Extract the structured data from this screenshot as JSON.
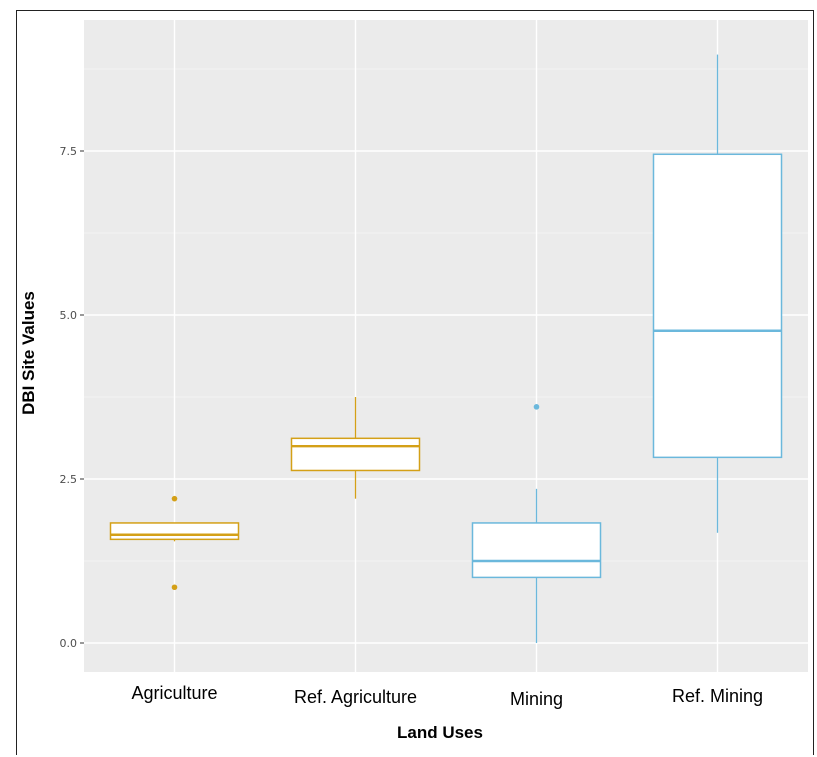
{
  "chart_data": {
    "type": "box",
    "title": "",
    "xlabel": "Land Uses",
    "ylabel": "DBI Site Values",
    "ylim": [
      -0.85,
      9.75
    ],
    "yticks": [
      0.0,
      2.5,
      5.0,
      7.5
    ],
    "ytick_labels": [
      "0.0",
      "2.5",
      "5.0",
      "7.5"
    ],
    "grid": true,
    "legend": "none",
    "categories": [
      "Agriculture",
      "Ref. Agriculture",
      "Mining",
      "Ref. Mining"
    ],
    "boxes": [
      {
        "category": "Agriculture",
        "color": "#D4A017",
        "whisker_low": 1.55,
        "q1": 1.58,
        "median": 1.65,
        "q3": 1.83,
        "whisker_high": 1.83,
        "outliers": [
          2.2,
          0.85
        ]
      },
      {
        "category": "Ref. Agriculture",
        "color": "#D4A017",
        "whisker_low": 2.2,
        "q1": 2.63,
        "median": 3.0,
        "q3": 3.12,
        "whisker_high": 3.75,
        "outliers": []
      },
      {
        "category": "Mining",
        "color": "#6BB8DC",
        "whisker_low": 0.0,
        "q1": 1.0,
        "median": 1.25,
        "q3": 1.83,
        "whisker_high": 2.35,
        "outliers": [
          3.6
        ]
      },
      {
        "category": "Ref. Mining",
        "color": "#6BB8DC",
        "whisker_low": 1.68,
        "q1": 2.83,
        "median": 4.76,
        "q3": 7.45,
        "whisker_high": 8.97,
        "outliers": []
      }
    ]
  }
}
